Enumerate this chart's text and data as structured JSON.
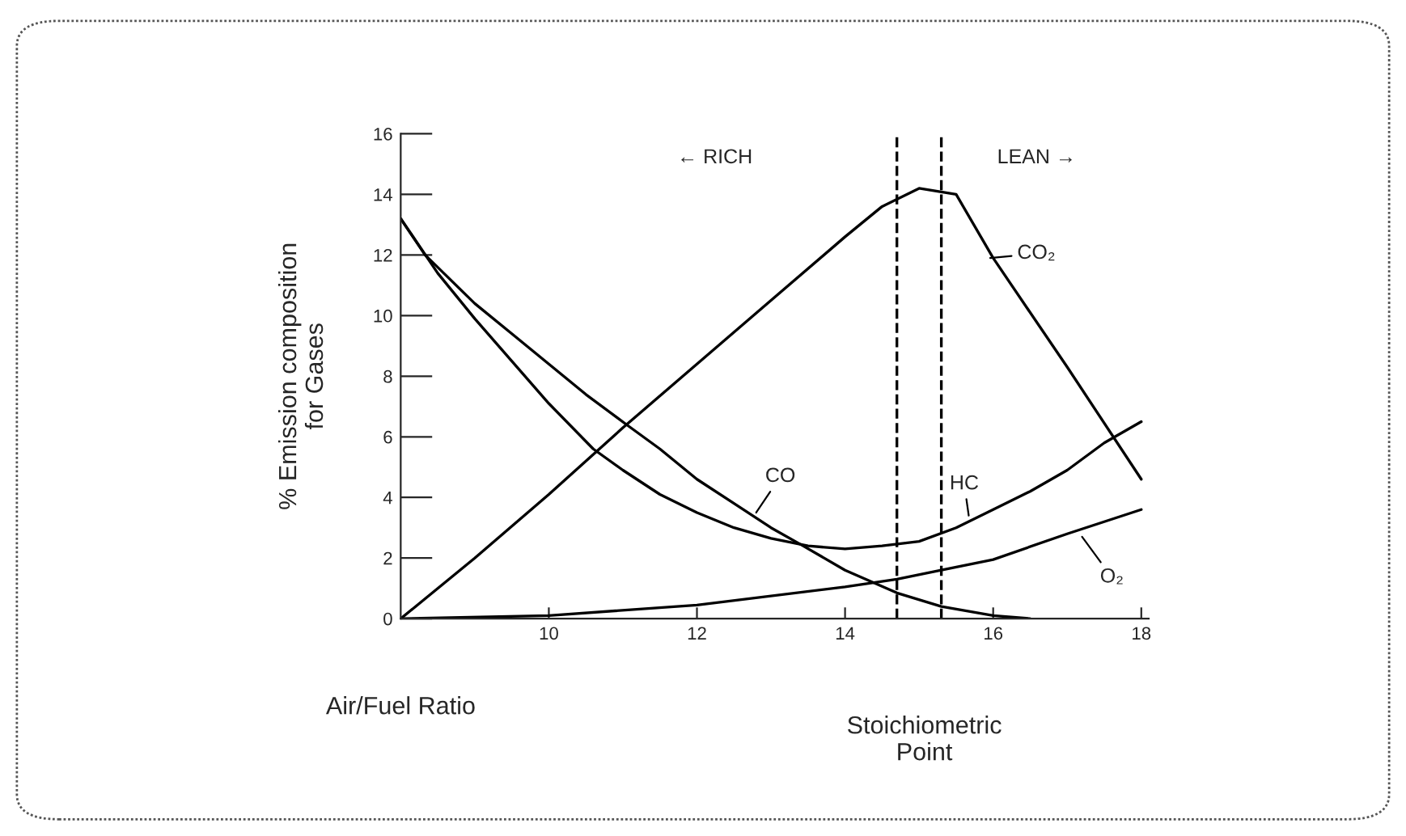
{
  "chart_data": {
    "type": "line",
    "ylabel": "% Emission composition\nfor Gases",
    "xlabel": "Air/Fuel Ratio",
    "xlim": [
      8,
      18.1
    ],
    "ylim": [
      0,
      16
    ],
    "xticks": [
      10,
      12,
      14,
      16,
      18
    ],
    "yticks": [
      0,
      2,
      4,
      6,
      8,
      10,
      12,
      14,
      16
    ],
    "grid": false,
    "marker": "none",
    "line_style": "solid",
    "series": [
      {
        "color": "#000000",
        "x": [
          8,
          9,
          10,
          11,
          12,
          13,
          14,
          14.5,
          15,
          15.5,
          16,
          17,
          18
        ],
        "values": [
          0,
          2.0,
          4.1,
          6.3,
          8.4,
          10.5,
          12.6,
          13.6,
          14.2,
          14.0,
          11.9,
          8.3,
          4.6
        ]
      },
      {
        "color": "#000000",
        "x": [
          8,
          8.5,
          9,
          9.5,
          10,
          10.6,
          11,
          11.5,
          12,
          12.5,
          13,
          13.5,
          14,
          14.5,
          15,
          15.5,
          16,
          16.5,
          17,
          17.5,
          18
        ],
        "values": [
          13.2,
          11.4,
          9.9,
          8.5,
          7.1,
          5.6,
          4.9,
          4.1,
          3.5,
          3.0,
          2.65,
          2.4,
          2.3,
          2.4,
          2.55,
          3.0,
          3.6,
          4.2,
          4.9,
          5.8,
          6.5
        ]
      },
      {
        "color": "#000000",
        "x": [
          8,
          8.33,
          9,
          9.5,
          10,
          10.5,
          11.05,
          11.5,
          12,
          12.5,
          13,
          13.4,
          14,
          14.7,
          15.3,
          16,
          16.5
        ],
        "values": [
          13.2,
          12,
          10.4,
          9.4,
          8.4,
          7.4,
          6.4,
          5.6,
          4.6,
          3.8,
          3.0,
          2.45,
          1.6,
          0.85,
          0.4,
          0.1,
          0
        ]
      },
      {
        "color": "#000000",
        "x": [
          8,
          10,
          12,
          14,
          14.7,
          15.3,
          16,
          17,
          18
        ],
        "values": [
          0,
          0.1,
          0.45,
          1.05,
          1.3,
          1.6,
          1.95,
          2.8,
          3.6
        ]
      }
    ],
    "ref_lines": [
      {
        "axis": "x",
        "value": 14.7,
        "color": "#000000",
        "line_style": "dashed"
      },
      {
        "axis": "x",
        "value": 15.3,
        "color": "#000000",
        "line_style": "dashed"
      }
    ],
    "annotations": [
      {
        "text": "CO₂",
        "x": 15.96,
        "y": 11.9
      },
      {
        "text": "HC",
        "x": 15.67,
        "y": 3.4
      },
      {
        "text": "CO",
        "x": 12.8,
        "y": 3.5
      },
      {
        "text": "O₂",
        "x": 17.2,
        "y": 2.7
      },
      "← RICH",
      "LEAN →",
      "Stoichiometric\nPoint"
    ]
  }
}
